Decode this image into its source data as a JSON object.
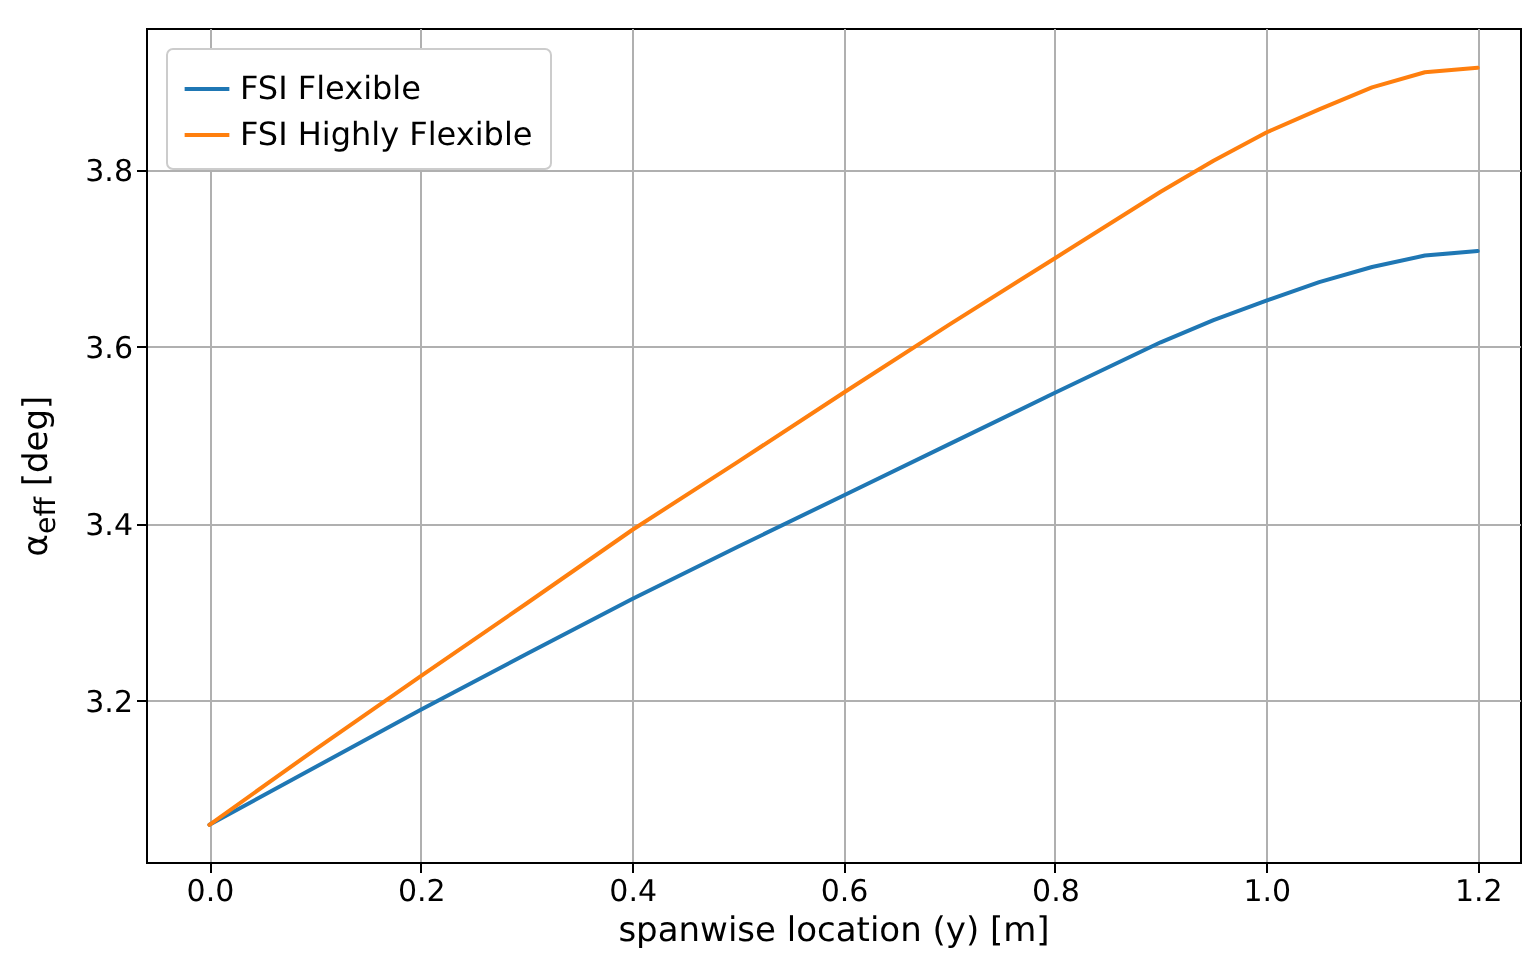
{
  "chart_data": {
    "type": "line",
    "xlabel": "spanwise location (y) [m]",
    "ylabel": "α$_{eff}$ [deg]",
    "x": [
      0,
      0.1,
      0.2,
      0.3,
      0.4,
      0.5,
      0.6,
      0.7,
      0.8,
      0.9,
      0.95,
      1.0,
      1.05,
      1.1,
      1.15,
      1.2
    ],
    "series": [
      {
        "name": "FSI Flexible",
        "color": "#1f77b4",
        "values": [
          3.06,
          3.125,
          3.19,
          3.253,
          3.315,
          3.374,
          3.432,
          3.49,
          3.548,
          3.605,
          3.63,
          3.652,
          3.673,
          3.69,
          3.703,
          3.708
        ]
      },
      {
        "name": "FSI Highly Flexible",
        "color": "#ff7f0e",
        "values": [
          3.06,
          3.145,
          3.228,
          3.31,
          3.393,
          3.47,
          3.548,
          3.625,
          3.7,
          3.775,
          3.81,
          3.842,
          3.868,
          3.893,
          3.91,
          3.915
        ]
      }
    ],
    "xlim": [
      -0.06,
      1.24
    ],
    "ylim": [
      3.018,
      3.96
    ],
    "xticks": [
      {
        "value": 0,
        "label": "0.0"
      },
      0.2,
      0.4,
      0.6,
      0.8,
      {
        "value": 1,
        "label": "1.0"
      },
      1.2
    ],
    "yticks": [
      3.2,
      3.4,
      3.6,
      3.8
    ],
    "grid": true,
    "legend": "top left",
    "line_style": "solid",
    "marker": "none"
  }
}
